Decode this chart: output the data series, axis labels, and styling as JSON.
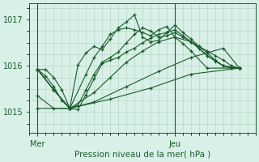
{
  "bg_color": "#d8f0e8",
  "grid_color": "#b0d0c0",
  "line_color": "#1a5c2a",
  "xlabel": "Pression niveau de la mer( hPa )",
  "ylim": [
    1014.55,
    1017.35
  ],
  "yticks": [
    1015,
    1016,
    1017
  ],
  "xmin": 0,
  "xmax": 56,
  "day_ticks": [
    2,
    36
  ],
  "day_labels": [
    "Mer",
    "Jeu"
  ],
  "vline_x": [
    2,
    36
  ],
  "series": [
    [
      2,
      1015.92,
      4,
      1015.92,
      6,
      1015.75,
      8,
      1015.48,
      10,
      1015.08,
      12,
      1015.05,
      14,
      1015.38,
      16,
      1015.72,
      18,
      1016.05,
      20,
      1016.12,
      22,
      1016.18,
      24,
      1016.3,
      26,
      1016.38,
      28,
      1016.5,
      30,
      1016.6,
      32,
      1016.68,
      34,
      1016.72,
      36,
      1016.78,
      38,
      1016.65,
      40,
      1016.52,
      42,
      1016.42,
      44,
      1016.32,
      46,
      1016.22,
      48,
      1016.12,
      50,
      1016.0,
      52,
      1015.95
    ],
    [
      2,
      1015.92,
      4,
      1015.78,
      6,
      1015.55,
      8,
      1015.25,
      10,
      1015.08,
      12,
      1015.15,
      14,
      1015.48,
      16,
      1015.82,
      18,
      1016.08,
      20,
      1016.18,
      22,
      1016.3,
      24,
      1016.5,
      26,
      1016.68,
      28,
      1016.82,
      30,
      1016.75,
      32,
      1016.62,
      34,
      1016.65,
      36,
      1016.72,
      38,
      1016.62,
      40,
      1016.52,
      42,
      1016.38,
      44,
      1016.22,
      46,
      1016.1,
      48,
      1016.0,
      50,
      1015.95,
      52,
      1015.95
    ],
    [
      2,
      1015.92,
      6,
      1015.48,
      10,
      1015.08,
      12,
      1016.02,
      14,
      1016.28,
      16,
      1016.42,
      18,
      1016.35,
      20,
      1016.58,
      22,
      1016.82,
      24,
      1016.95,
      26,
      1017.1,
      28,
      1016.62,
      30,
      1016.52,
      32,
      1016.55,
      34,
      1016.72,
      36,
      1016.88,
      38,
      1016.72,
      40,
      1016.58,
      42,
      1016.42,
      44,
      1016.28,
      46,
      1016.12,
      48,
      1016.0,
      50,
      1015.95,
      52,
      1015.95
    ],
    [
      2,
      1015.92,
      6,
      1015.48,
      10,
      1015.08,
      14,
      1015.82,
      16,
      1016.18,
      18,
      1016.42,
      20,
      1016.68,
      22,
      1016.78,
      24,
      1016.82,
      26,
      1016.78,
      28,
      1016.72,
      30,
      1016.65,
      32,
      1016.78,
      34,
      1016.85,
      36,
      1016.62,
      38,
      1016.48,
      40,
      1016.32,
      44,
      1015.95,
      52,
      1015.95
    ],
    [
      2,
      1015.92,
      6,
      1015.48,
      10,
      1015.08,
      16,
      1015.42,
      20,
      1015.75,
      24,
      1016.08,
      28,
      1016.32,
      32,
      1016.52,
      36,
      1016.62,
      40,
      1016.52,
      44,
      1016.22,
      48,
      1016.0,
      52,
      1015.95
    ],
    [
      2,
      1015.35,
      6,
      1015.08,
      10,
      1015.08,
      16,
      1015.22,
      24,
      1015.55,
      32,
      1015.88,
      40,
      1016.18,
      48,
      1016.38,
      52,
      1015.95
    ],
    [
      2,
      1015.08,
      10,
      1015.08,
      20,
      1015.28,
      30,
      1015.52,
      40,
      1015.82,
      52,
      1015.95
    ]
  ]
}
